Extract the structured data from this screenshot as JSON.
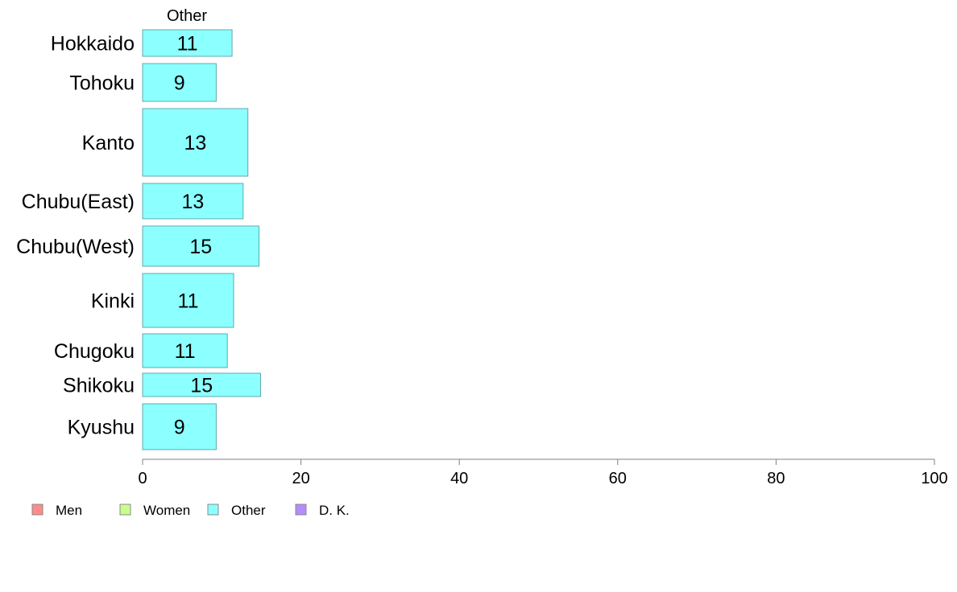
{
  "chart_data": {
    "type": "bar",
    "orientation": "horizontal",
    "stacked": true,
    "categories": [
      "Hokkaido",
      "Tohoku",
      "Kanto",
      "Chubu(East)",
      "Chubu(West)",
      "Kinki",
      "Chugoku",
      "Shikoku",
      "Kyushu"
    ],
    "series": [
      {
        "name": "Other",
        "color": "#8cffff",
        "values": [
          11,
          9,
          13,
          13,
          15,
          11,
          11,
          15,
          9
        ],
        "bar_values": [
          11.3,
          9.3,
          13.3,
          12.7,
          14.7,
          11.5,
          10.7,
          14.9,
          9.3
        ]
      }
    ],
    "segment_title": "Other",
    "xlim": [
      0,
      100
    ],
    "xticks": [
      0,
      20,
      40,
      60,
      80,
      100
    ],
    "legend": {
      "position": "bottom-left",
      "items": [
        {
          "label": "Men",
          "color": "#ff8c8c"
        },
        {
          "label": "Women",
          "color": "#c8ff8c"
        },
        {
          "label": "Other",
          "color": "#8cffff"
        },
        {
          "label": "D. K.",
          "color": "#b48cff"
        }
      ]
    },
    "grid": false
  }
}
